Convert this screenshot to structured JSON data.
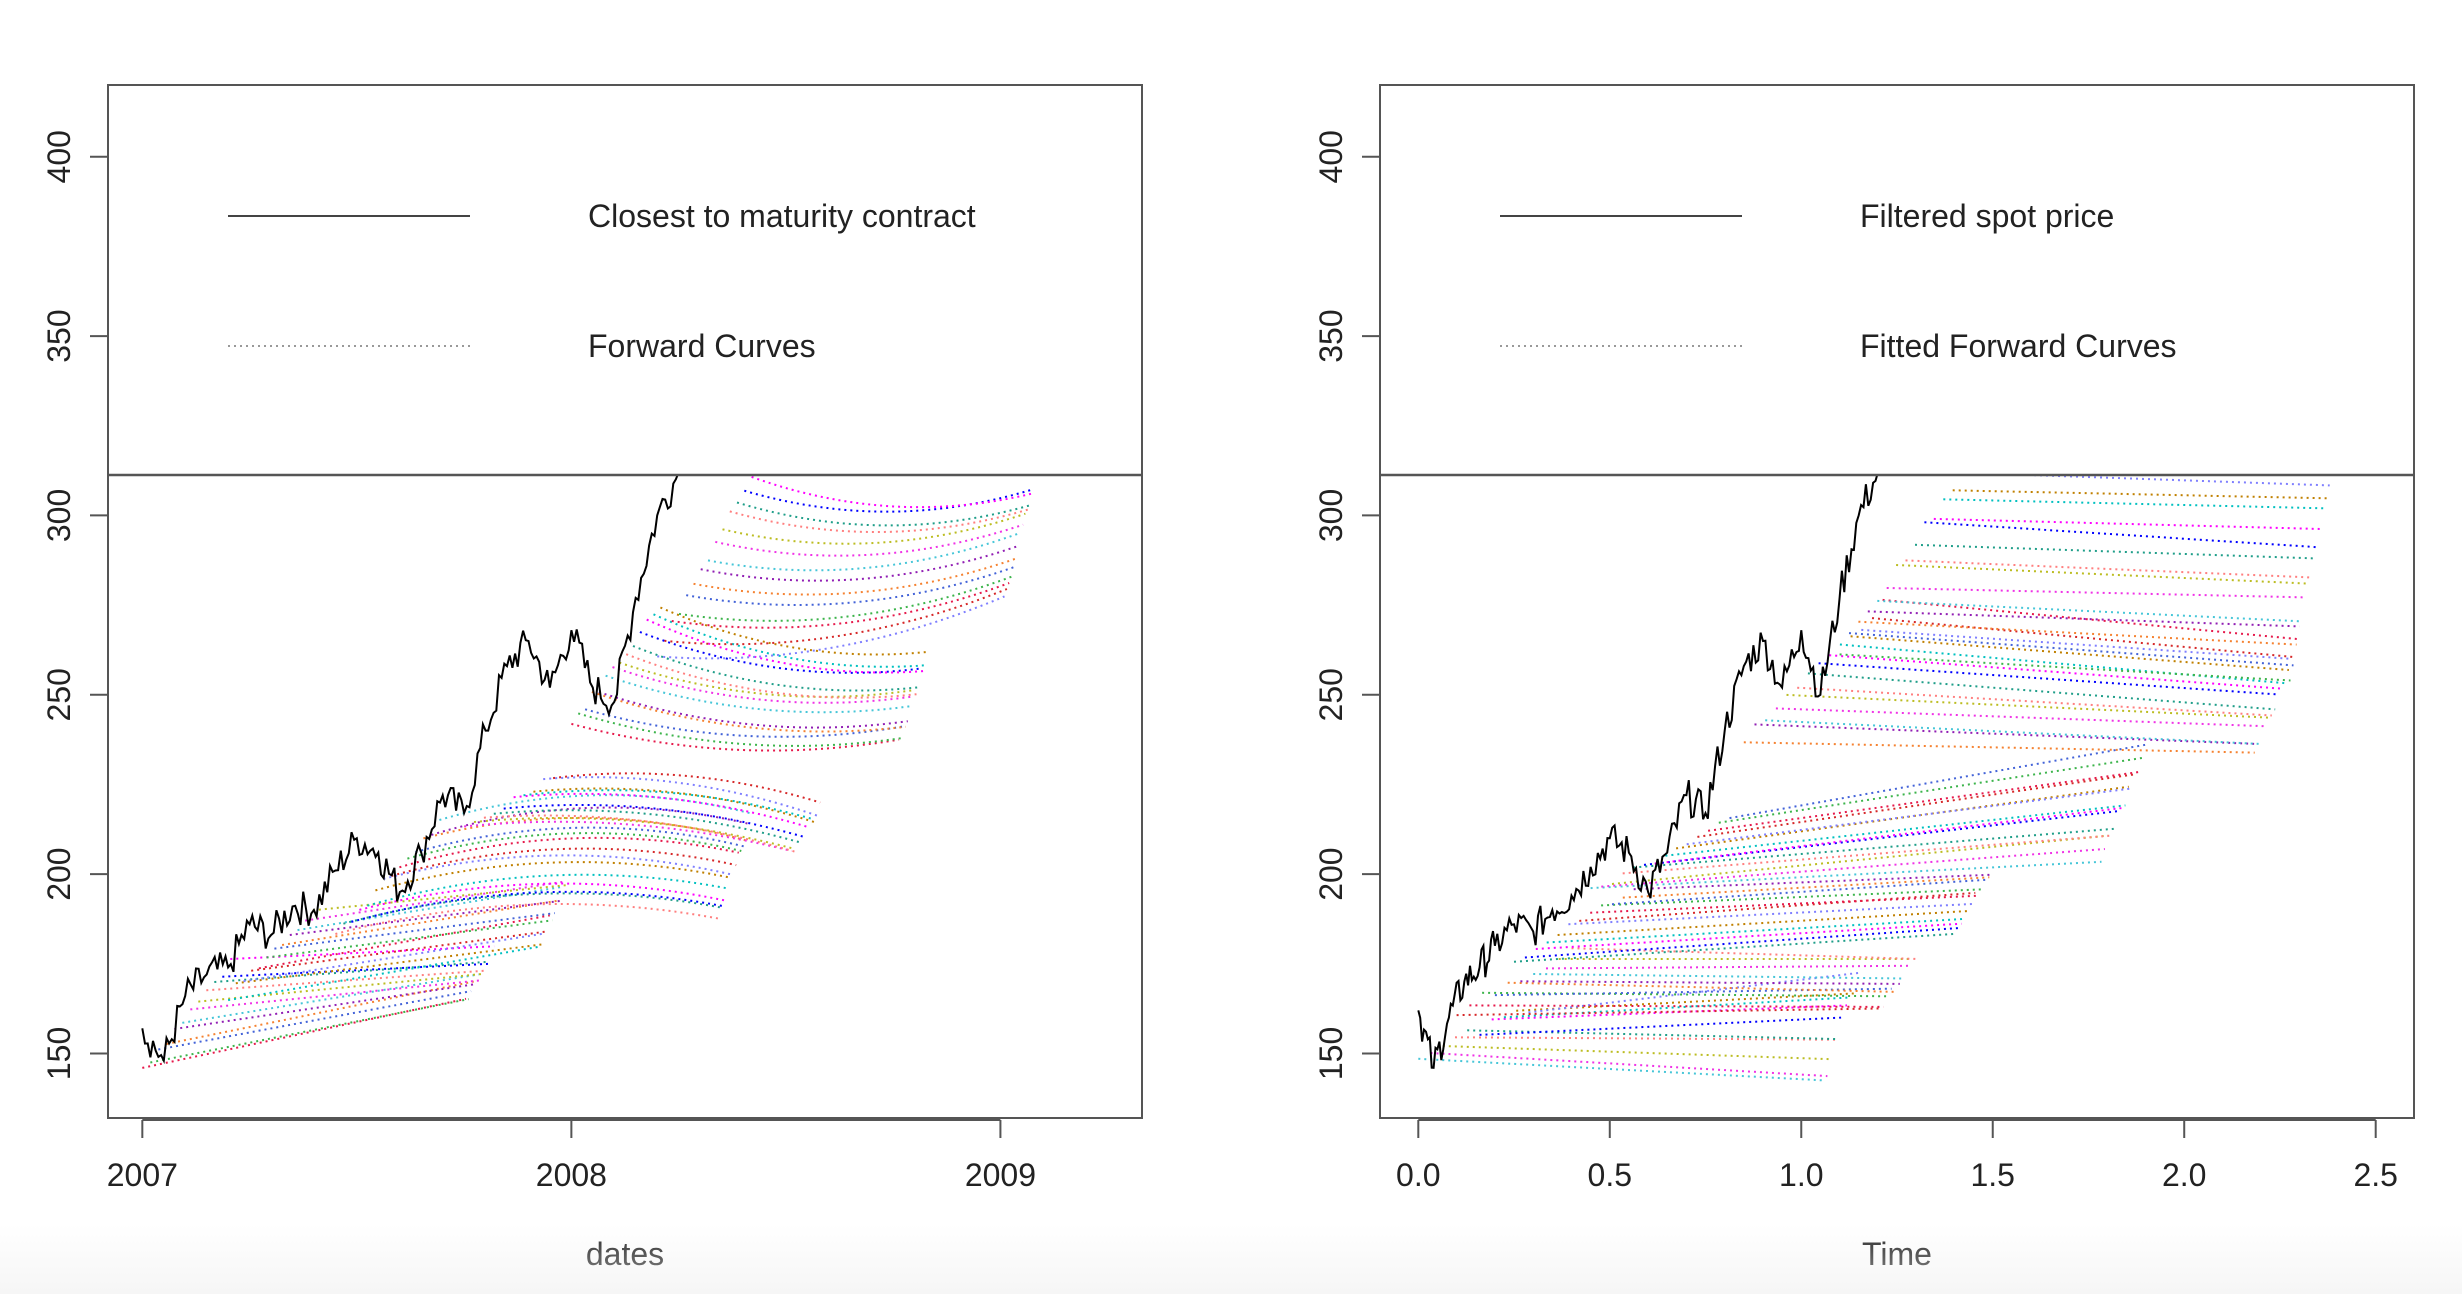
{
  "chart_data": [
    {
      "type": "line",
      "title": "",
      "xlabel": "dates",
      "ylabel": "",
      "xlim": [
        2006.92,
        2009.33
      ],
      "ylim": [
        132,
        420
      ],
      "x_ticks": [
        "2007",
        "2008",
        "2009"
      ],
      "x_tick_values": [
        2007,
        2008,
        2009
      ],
      "y_ticks": [
        "150",
        "200",
        "250",
        "300",
        "350",
        "400"
      ],
      "y_tick_values": [
        150,
        200,
        250,
        300,
        350,
        400
      ],
      "legend": {
        "placement": "top",
        "entries": [
          {
            "label": "Closest to maturity contract",
            "style": "solid",
            "color": "#000000"
          },
          {
            "label": "Forward Curves",
            "style": "dotted",
            "color": "#999999"
          }
        ]
      },
      "series": [
        {
          "name": "Closest to maturity contract",
          "style": "solid",
          "x": [
            2007.0,
            2007.05,
            2007.1,
            2007.15,
            2007.2,
            2007.25,
            2007.3,
            2007.35,
            2007.4,
            2007.45,
            2007.5,
            2007.55,
            2007.6,
            2007.65,
            2007.7,
            2007.75,
            2007.8,
            2007.85,
            2007.9,
            2007.95,
            2008.0,
            2008.05,
            2008.1,
            2008.15,
            2008.2,
            2008.25
          ],
          "values": [
            157,
            148,
            166,
            172,
            174,
            186,
            183,
            191,
            190,
            201,
            210,
            206,
            195,
            206,
            222,
            217,
            240,
            258,
            265,
            252,
            268,
            252,
            248,
            277,
            300,
            312
          ]
        }
      ],
      "forward_curve_groups": [
        {
          "x_start": 2007.0,
          "x_end": 2007.82,
          "y_start": [
            146,
            175
          ],
          "y_end": [
            165,
            178
          ],
          "curves": 12,
          "bend": 0
        },
        {
          "x_start": 2007.2,
          "x_end": 2007.99,
          "y_start": [
            166,
            190
          ],
          "y_end": [
            180,
            198
          ],
          "curves": 12,
          "bend": 0
        },
        {
          "x_start": 2007.45,
          "x_end": 2008.42,
          "y_start": [
            183,
            214
          ],
          "y_end": [
            188,
            215
          ],
          "curves": 14,
          "bend": 12
        },
        {
          "x_start": 2007.75,
          "x_end": 2008.58,
          "y_start": [
            212,
            228
          ],
          "y_end": [
            205,
            218
          ],
          "curves": 10,
          "bend": 8
        },
        {
          "x_start": 2008.0,
          "x_end": 2008.83,
          "y_start": [
            242,
            275
          ],
          "y_end": [
            236,
            262
          ],
          "curves": 14,
          "bend": -10
        },
        {
          "x_start": 2008.2,
          "x_end": 2009.08,
          "y_start": [
            262,
            312
          ],
          "y_end": [
            278,
            308
          ],
          "curves": 14,
          "bend": -12
        }
      ]
    },
    {
      "type": "line",
      "title": "",
      "xlabel": "Time",
      "ylabel": "",
      "xlim": [
        -0.1,
        2.6
      ],
      "ylim": [
        132,
        420
      ],
      "x_ticks": [
        "0.0",
        "0.5",
        "1.0",
        "1.5",
        "2.0",
        "2.5"
      ],
      "x_tick_values": [
        0.0,
        0.5,
        1.0,
        1.5,
        2.0,
        2.5
      ],
      "y_ticks": [
        "150",
        "200",
        "250",
        "300",
        "350",
        "400"
      ],
      "y_tick_values": [
        150,
        200,
        250,
        300,
        350,
        400
      ],
      "legend": {
        "placement": "top",
        "entries": [
          {
            "label": "Filtered spot price",
            "style": "solid",
            "color": "#000000"
          },
          {
            "label": "Fitted Forward Curves",
            "style": "dotted",
            "color": "#999999"
          }
        ]
      },
      "series": [
        {
          "name": "Filtered spot price",
          "style": "solid",
          "x": [
            0.0,
            0.04,
            0.08,
            0.12,
            0.16,
            0.2,
            0.25,
            0.3,
            0.35,
            0.4,
            0.45,
            0.5,
            0.55,
            0.6,
            0.65,
            0.7,
            0.75,
            0.8,
            0.85,
            0.9,
            0.95,
            1.0,
            1.05,
            1.1,
            1.15,
            1.2
          ],
          "values": [
            162,
            146,
            160,
            170,
            174,
            180,
            186,
            184,
            190,
            194,
            202,
            210,
            206,
            195,
            206,
            222,
            217,
            240,
            258,
            265,
            252,
            268,
            250,
            277,
            300,
            312
          ]
        }
      ],
      "forward_curve_groups": [
        {
          "x_start": 0.0,
          "x_end": 1.15,
          "y_start": [
            150,
            162
          ],
          "y_end": [
            142,
            172
          ],
          "curves": 10,
          "bend": 0
        },
        {
          "x_start": 0.1,
          "x_end": 1.3,
          "y_start": [
            162,
            178
          ],
          "y_end": [
            162,
            178
          ],
          "curves": 10,
          "bend": 0
        },
        {
          "x_start": 0.25,
          "x_end": 1.5,
          "y_start": [
            176,
            196
          ],
          "y_end": [
            185,
            200
          ],
          "curves": 12,
          "bend": 0
        },
        {
          "x_start": 0.45,
          "x_end": 1.9,
          "y_start": [
            195,
            215
          ],
          "y_end": [
            205,
            235
          ],
          "curves": 14,
          "bend": 0
        },
        {
          "x_start": 0.85,
          "x_end": 2.3,
          "y_start": [
            238,
            275
          ],
          "y_end": [
            232,
            265
          ],
          "curves": 14,
          "bend": 0
        },
        {
          "x_start": 1.1,
          "x_end": 2.38,
          "y_start": [
            262,
            312
          ],
          "y_end": [
            255,
            310
          ],
          "curves": 14,
          "bend": 0
        }
      ]
    }
  ]
}
